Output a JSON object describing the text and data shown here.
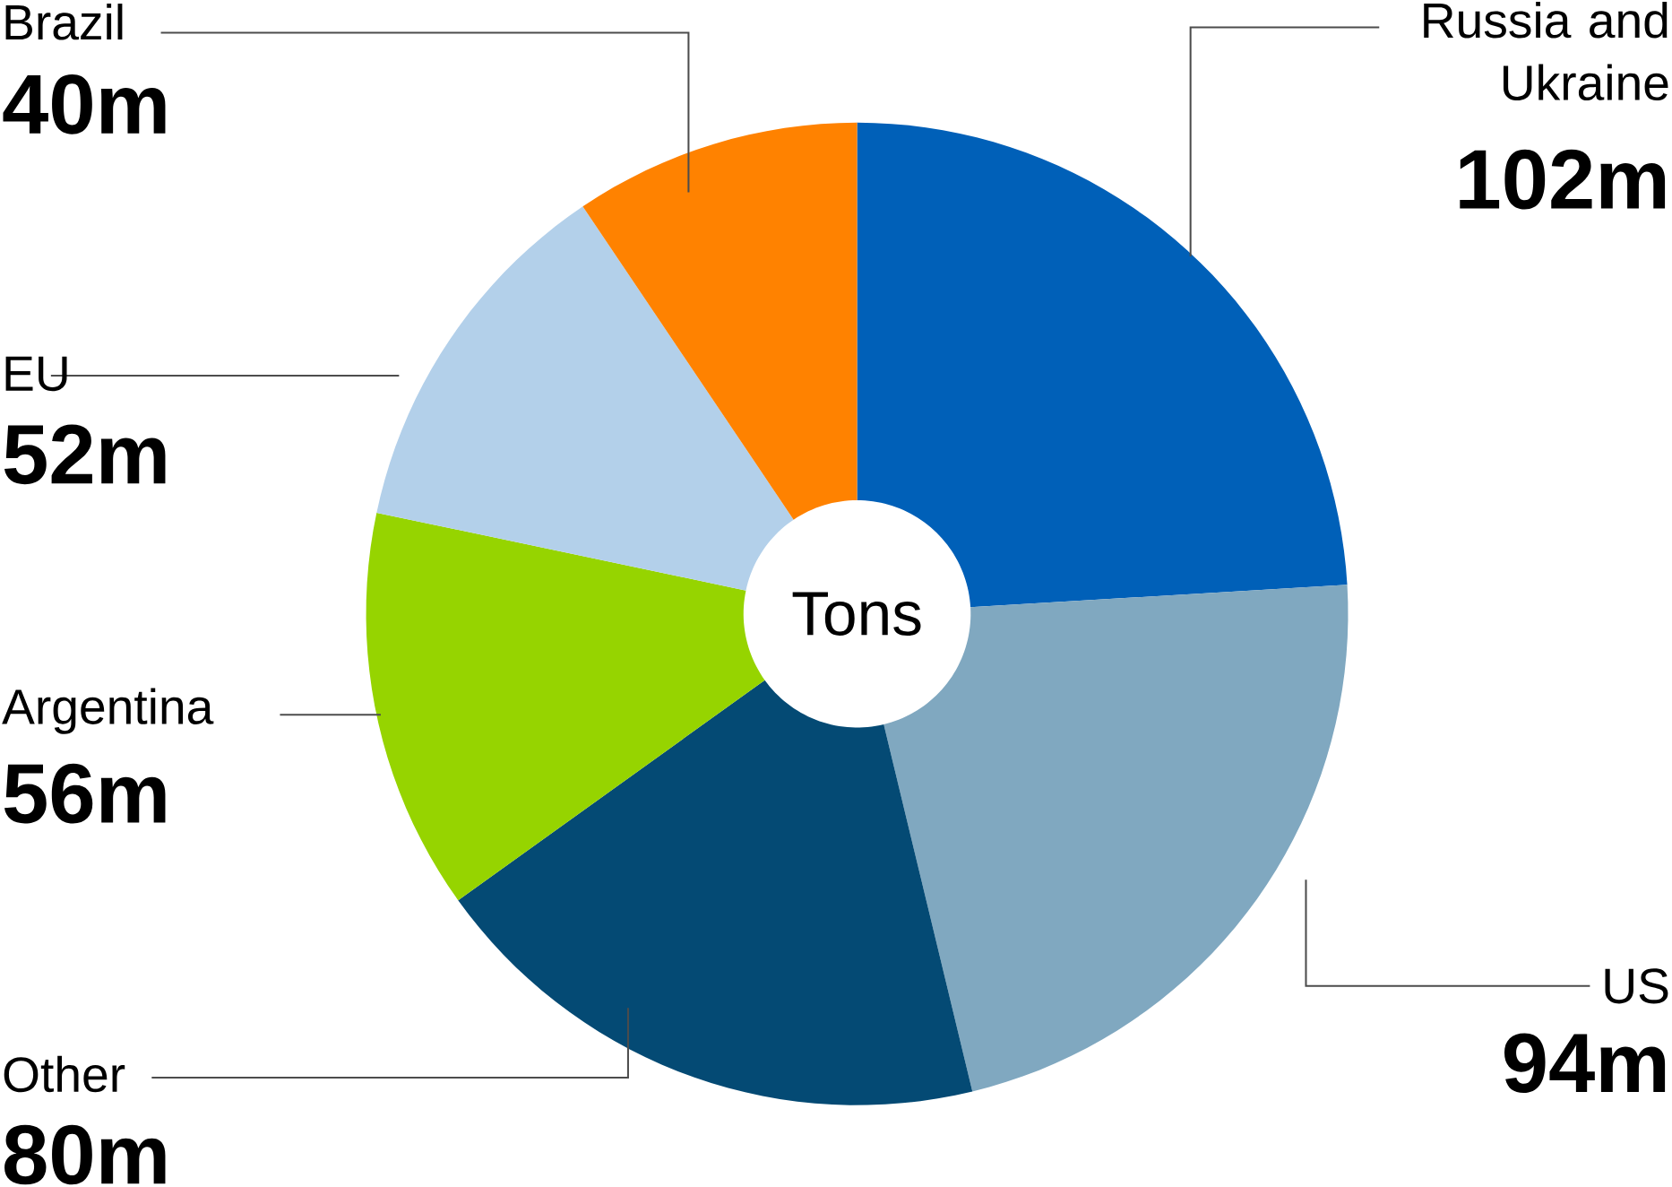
{
  "chart_data": {
    "type": "donut",
    "categories": [
      "Russia and Ukraine",
      "US",
      "Other",
      "Argentina",
      "EU",
      "Brazil"
    ],
    "values": [
      102,
      94,
      80,
      56,
      52,
      40
    ],
    "colors": [
      "#0060b8",
      "#80a8c0",
      "#044a74",
      "#96d400",
      "#b3d0ea",
      "#ff8200"
    ],
    "value_labels": [
      "102m",
      "94m",
      "80m",
      "56m",
      "52m",
      "40m"
    ],
    "annotations": [
      "Tons"
    ]
  }
}
